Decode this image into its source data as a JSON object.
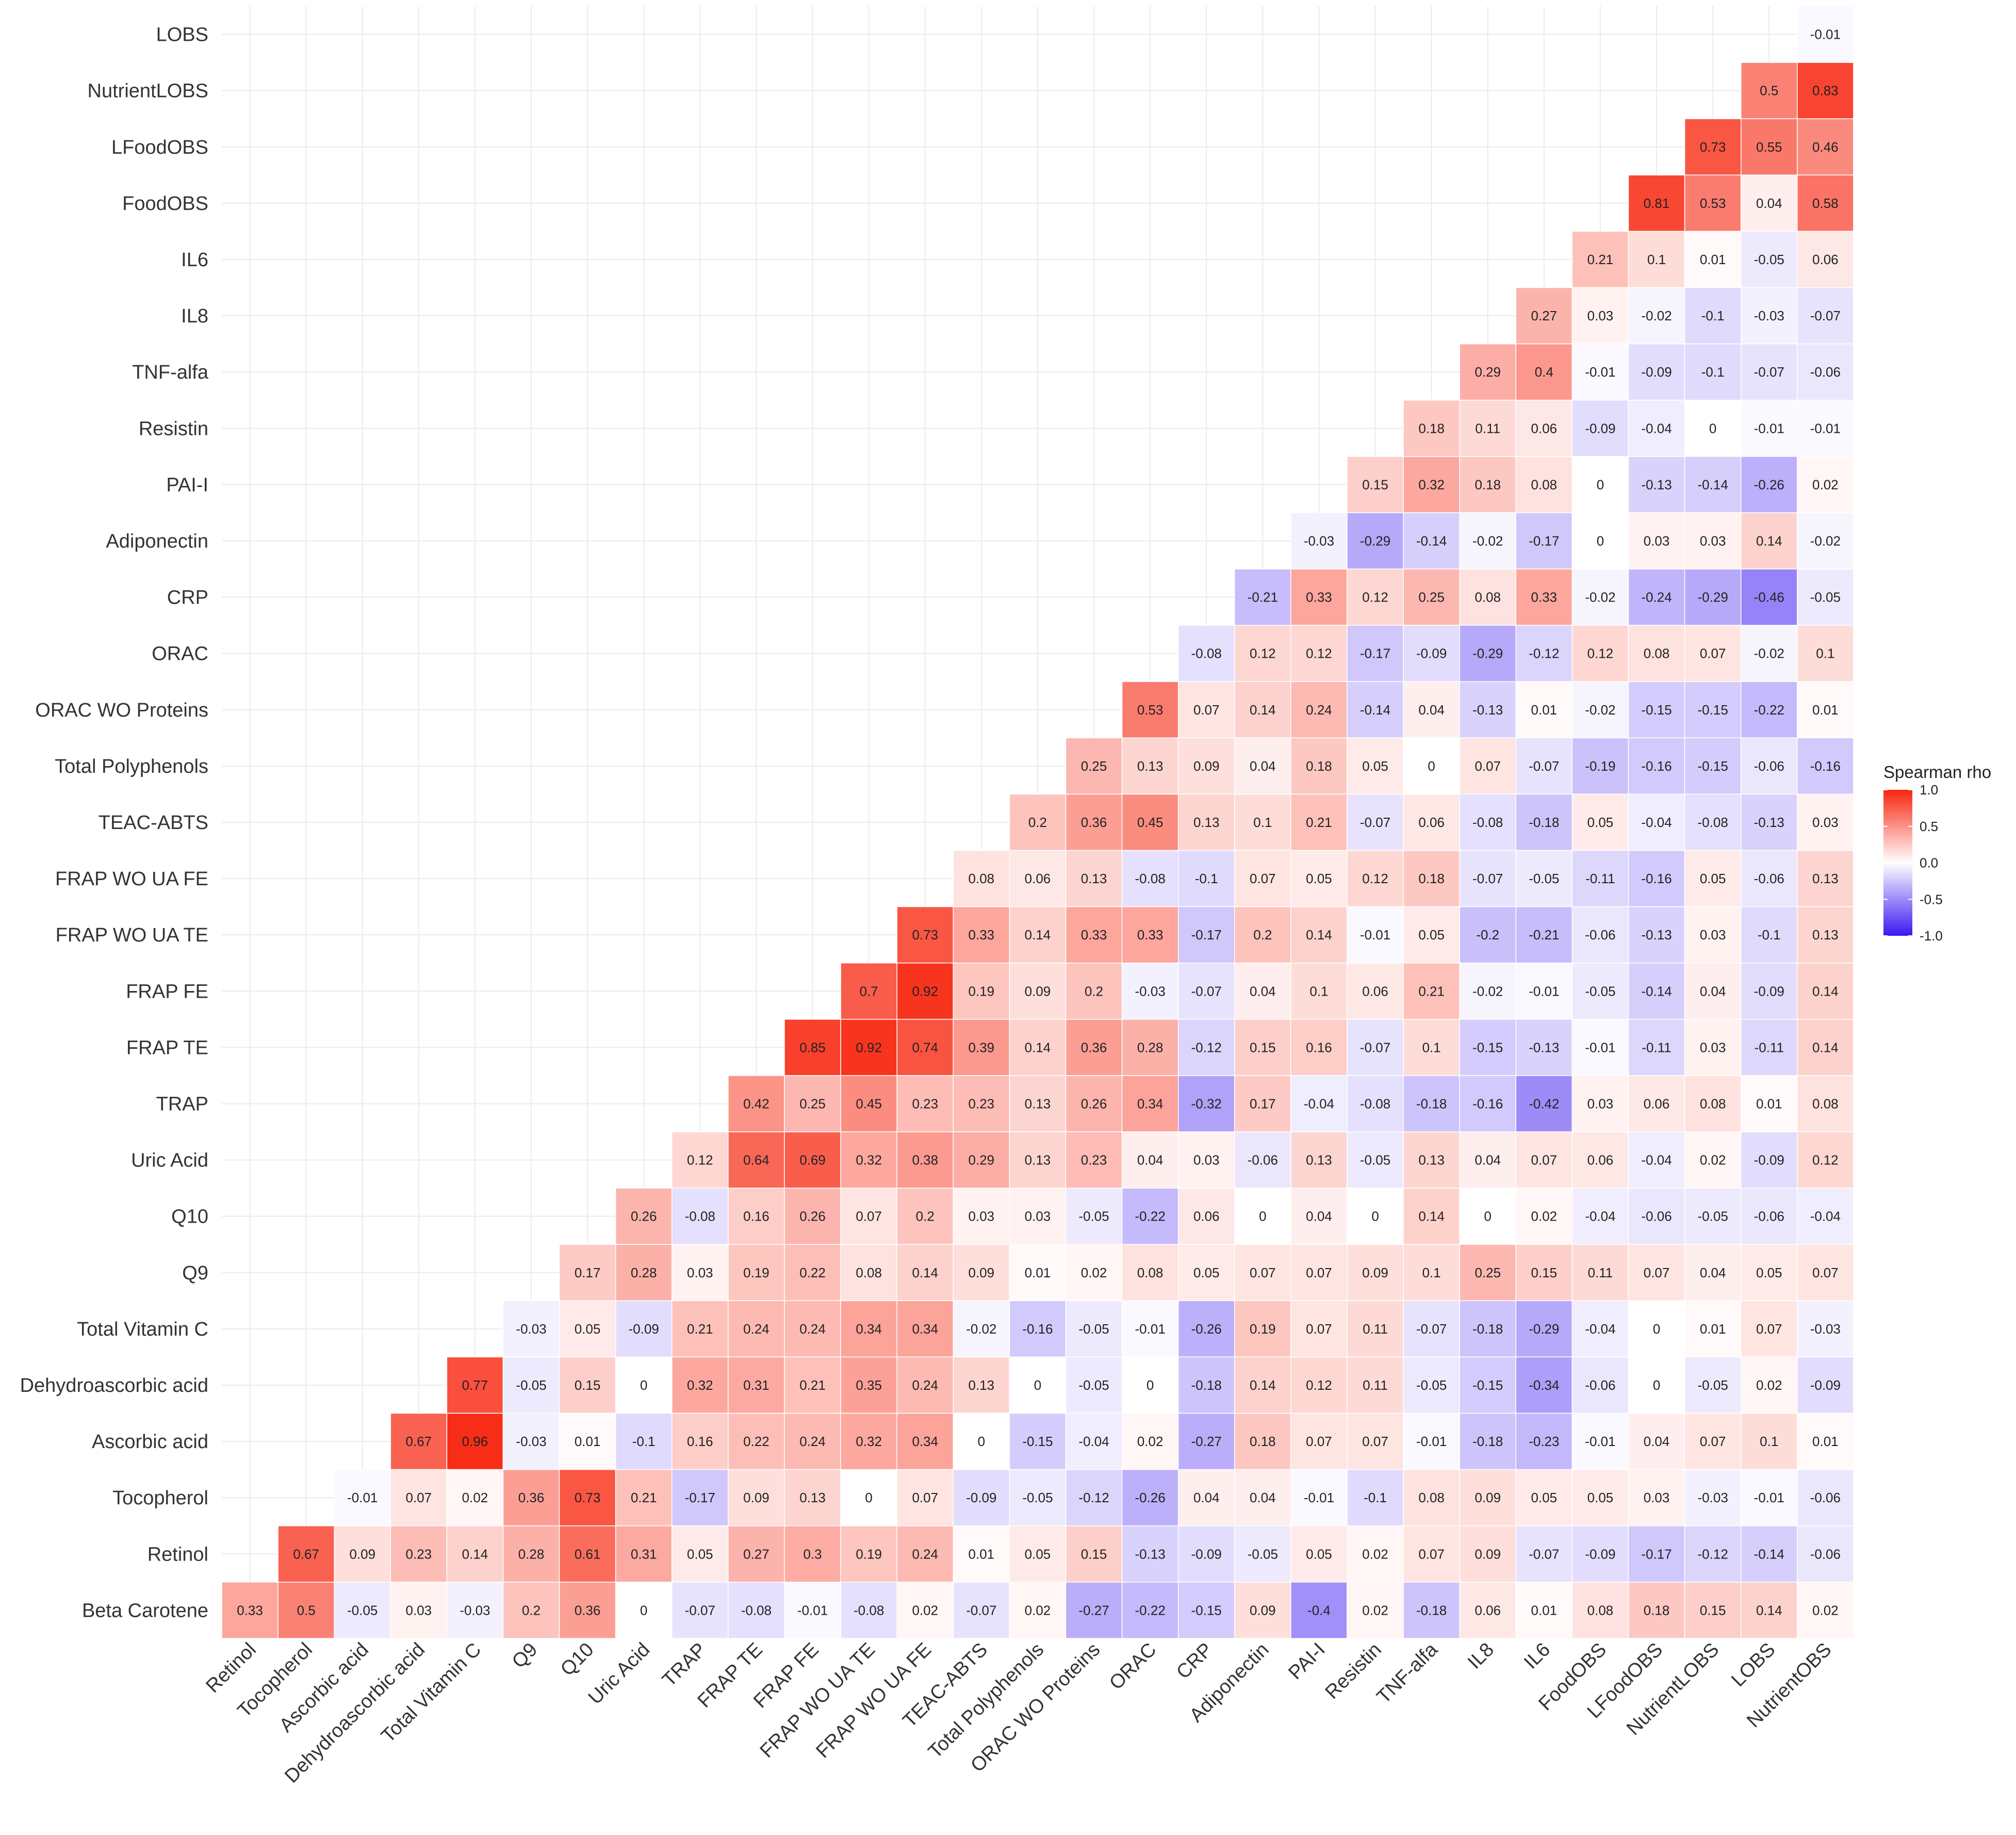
{
  "chart_data": {
    "type": "heatmap",
    "title": "",
    "legend": {
      "title": "Spearman rho",
      "ticks": [
        1.0,
        0.5,
        0.0,
        -0.5,
        -1.0
      ],
      "tick_labels": [
        "1.0",
        "0.5",
        "0.0",
        "-0.5",
        "-1.0"
      ],
      "low_color": "#3b18f0",
      "mid_color": "#ffffff",
      "high_color": "#f7260f"
    },
    "x_labels": [
      "Retinol",
      "Tocopherol",
      "Ascorbic acid",
      "Dehydroascorbic acid",
      "Total Vitamin C",
      "Q9",
      "Q10",
      "Uric Acid",
      "TRAP",
      "FRAP TE",
      "FRAP FE",
      "FRAP WO UA TE",
      "FRAP WO UA FE",
      "TEAC-ABTS",
      "Total Polyphenols",
      "ORAC WO Proteins",
      "ORAC",
      "CRP",
      "Adiponectin",
      "PAI-I",
      "Resistin",
      "TNF-alfa",
      "IL8",
      "IL6",
      "FoodOBS",
      "LFoodOBS",
      "NutrientLOBS",
      "LOBS",
      "NutrientOBS"
    ],
    "y_labels": [
      "LOBS",
      "NutrientLOBS",
      "LFoodOBS",
      "FoodOBS",
      "IL6",
      "IL8",
      "TNF-alfa",
      "Resistin",
      "PAI-I",
      "Adiponectin",
      "CRP",
      "ORAC",
      "ORAC WO Proteins",
      "Total Polyphenols",
      "TEAC-ABTS",
      "FRAP WO UA FE",
      "FRAP WO UA TE",
      "FRAP FE",
      "FRAP TE",
      "TRAP",
      "Uric Acid",
      "Q10",
      "Q9",
      "Total Vitamin C",
      "Dehydroascorbic acid",
      "Ascorbic acid",
      "Tocopherol",
      "Retinol",
      "Beta Carotene"
    ],
    "rows": [
      {
        "label": "LOBS",
        "start": 28,
        "values": [
          "-0.01"
        ]
      },
      {
        "label": "NutrientLOBS",
        "start": 27,
        "values": [
          "0.5",
          "0.83"
        ]
      },
      {
        "label": "LFoodOBS",
        "start": 26,
        "values": [
          "0.73",
          "0.55",
          "0.46"
        ]
      },
      {
        "label": "FoodOBS",
        "start": 25,
        "values": [
          "0.81",
          "0.53",
          "0.04",
          "0.58"
        ]
      },
      {
        "label": "IL6",
        "start": 24,
        "values": [
          "0.21",
          "0.1",
          "0.01",
          "-0.05",
          "0.06"
        ]
      },
      {
        "label": "IL8",
        "start": 23,
        "values": [
          "0.27",
          "0.03",
          "-0.02",
          "-0.1",
          "-0.03",
          "-0.07"
        ]
      },
      {
        "label": "TNF-alfa",
        "start": 22,
        "values": [
          "0.29",
          "0.4",
          "-0.01",
          "-0.09",
          "-0.1",
          "-0.07",
          "-0.06"
        ]
      },
      {
        "label": "Resistin",
        "start": 21,
        "values": [
          "0.18",
          "0.11",
          "0.06",
          "-0.09",
          "-0.04",
          "0",
          "-0.01",
          "-0.01"
        ]
      },
      {
        "label": "PAI-I",
        "start": 20,
        "values": [
          "0.15",
          "0.32",
          "0.18",
          "0.08",
          "0",
          "-0.13",
          "-0.14",
          "-0.26",
          "0.02"
        ]
      },
      {
        "label": "Adiponectin",
        "start": 19,
        "values": [
          "-0.03",
          "-0.29",
          "-0.14",
          "-0.02",
          "-0.17",
          "0",
          "0.03",
          "0.03",
          "0.14",
          "-0.02"
        ]
      },
      {
        "label": "CRP",
        "start": 18,
        "values": [
          "-0.21",
          "0.33",
          "0.12",
          "0.25",
          "0.08",
          "0.33",
          "-0.02",
          "-0.24",
          "-0.29",
          "-0.46",
          "-0.05"
        ]
      },
      {
        "label": "ORAC",
        "start": 17,
        "values": [
          "-0.08",
          "0.12",
          "0.12",
          "-0.17",
          "-0.09",
          "-0.29",
          "-0.12",
          "0.12",
          "0.08",
          "0.07",
          "-0.02",
          "0.1"
        ]
      },
      {
        "label": "ORAC WO Proteins",
        "start": 16,
        "values": [
          "0.53",
          "0.07",
          "0.14",
          "0.24",
          "-0.14",
          "0.04",
          "-0.13",
          "0.01",
          "-0.02",
          "-0.15",
          "-0.15",
          "-0.22",
          "0.01"
        ]
      },
      {
        "label": "Total Polyphenols",
        "start": 15,
        "values": [
          "0.25",
          "0.13",
          "0.09",
          "0.04",
          "0.18",
          "0.05",
          "0",
          "0.07",
          "-0.07",
          "-0.19",
          "-0.16",
          "-0.15",
          "-0.06",
          "-0.16"
        ]
      },
      {
        "label": "TEAC-ABTS",
        "start": 14,
        "values": [
          "0.2",
          "0.36",
          "0.45",
          "0.13",
          "0.1",
          "0.21",
          "-0.07",
          "0.06",
          "-0.08",
          "-0.18",
          "0.05",
          "-0.04",
          "-0.08",
          "-0.13",
          "0.03"
        ]
      },
      {
        "label": "FRAP WO UA FE",
        "start": 13,
        "values": [
          "0.08",
          "0.06",
          "0.13",
          "-0.08",
          "-0.1",
          "0.07",
          "0.05",
          "0.12",
          "0.18",
          "-0.07",
          "-0.05",
          "-0.11",
          "-0.16",
          "0.05",
          "-0.06",
          "0.13"
        ]
      },
      {
        "label": "FRAP WO UA TE",
        "start": 12,
        "values": [
          "0.73",
          "0.33",
          "0.14",
          "0.33",
          "0.33",
          "-0.17",
          "0.2",
          "0.14",
          "-0.01",
          "0.05",
          "-0.2",
          "-0.21",
          "-0.06",
          "-0.13",
          "0.03",
          "-0.1",
          "0.13"
        ]
      },
      {
        "label": "FRAP FE",
        "start": 11,
        "values": [
          "0.7",
          "0.92",
          "0.19",
          "0.09",
          "0.2",
          "-0.03",
          "-0.07",
          "0.04",
          "0.1",
          "0.06",
          "0.21",
          "-0.02",
          "-0.01",
          "-0.05",
          "-0.14",
          "0.04",
          "-0.09",
          "0.14"
        ]
      },
      {
        "label": "FRAP TE",
        "start": 10,
        "values": [
          "0.85",
          "0.92",
          "0.74",
          "0.39",
          "0.14",
          "0.36",
          "0.28",
          "-0.12",
          "0.15",
          "0.16",
          "-0.07",
          "0.1",
          "-0.15",
          "-0.13",
          "-0.01",
          "-0.11",
          "0.03",
          "-0.11",
          "0.14"
        ]
      },
      {
        "label": "TRAP",
        "start": 9,
        "values": [
          "0.42",
          "0.25",
          "0.45",
          "0.23",
          "0.23",
          "0.13",
          "0.26",
          "0.34",
          "-0.32",
          "0.17",
          "-0.04",
          "-0.08",
          "-0.18",
          "-0.16",
          "-0.42",
          "0.03",
          "0.06",
          "0.08",
          "0.01",
          "0.08"
        ]
      },
      {
        "label": "Uric Acid",
        "start": 8,
        "values": [
          "0.12",
          "0.64",
          "0.69",
          "0.32",
          "0.38",
          "0.29",
          "0.13",
          "0.23",
          "0.04",
          "0.03",
          "-0.06",
          "0.13",
          "-0.05",
          "0.13",
          "0.04",
          "0.07",
          "0.06",
          "-0.04",
          "0.02",
          "-0.09",
          "0.12"
        ]
      },
      {
        "label": "Q10",
        "start": 7,
        "values": [
          "0.26",
          "-0.08",
          "0.16",
          "0.26",
          "0.07",
          "0.2",
          "0.03",
          "0.03",
          "-0.05",
          "-0.22",
          "0.06",
          "0",
          "0.04",
          "0",
          "0.14",
          "0",
          "0.02",
          "-0.04",
          "-0.06",
          "-0.05",
          "-0.06",
          "-0.04"
        ]
      },
      {
        "label": "Q9",
        "start": 6,
        "values": [
          "0.17",
          "0.28",
          "0.03",
          "0.19",
          "0.22",
          "0.08",
          "0.14",
          "0.09",
          "0.01",
          "0.02",
          "0.08",
          "0.05",
          "0.07",
          "0.07",
          "0.09",
          "0.1",
          "0.25",
          "0.15",
          "0.11",
          "0.07",
          "0.04",
          "0.05",
          "0.07"
        ]
      },
      {
        "label": "Total Vitamin C",
        "start": 5,
        "values": [
          "-0.03",
          "0.05",
          "-0.09",
          "0.21",
          "0.24",
          "0.24",
          "0.34",
          "0.34",
          "-0.02",
          "-0.16",
          "-0.05",
          "-0.01",
          "-0.26",
          "0.19",
          "0.07",
          "0.11",
          "-0.07",
          "-0.18",
          "-0.29",
          "-0.04",
          "0",
          "0.01",
          "0.07",
          "-0.03"
        ]
      },
      {
        "label": "Dehydroascorbic acid",
        "start": 4,
        "values": [
          "0.77",
          "-0.05",
          "0.15",
          "0",
          "0.32",
          "0.31",
          "0.21",
          "0.35",
          "0.24",
          "0.13",
          "0",
          "-0.05",
          "0",
          "-0.18",
          "0.14",
          "0.12",
          "0.11",
          "-0.05",
          "-0.15",
          "-0.34",
          "-0.06",
          "0",
          "-0.05",
          "0.02",
          "-0.09"
        ]
      },
      {
        "label": "Ascorbic acid",
        "start": 3,
        "values": [
          "0.67",
          "0.96",
          "-0.03",
          "0.01",
          "-0.1",
          "0.16",
          "0.22",
          "0.24",
          "0.32",
          "0.34",
          "0",
          "-0.15",
          "-0.04",
          "0.02",
          "-0.27",
          "0.18",
          "0.07",
          "0.07",
          "-0.01",
          "-0.18",
          "-0.23",
          "-0.01",
          "0.04",
          "0.07",
          "0.1",
          "0.01"
        ]
      },
      {
        "label": "Tocopherol",
        "start": 2,
        "values": [
          "-0.01",
          "0.07",
          "0.02",
          "0.36",
          "0.73",
          "0.21",
          "-0.17",
          "0.09",
          "0.13",
          "0",
          "0.07",
          "-0.09",
          "-0.05",
          "-0.12",
          "-0.26",
          "0.04",
          "0.04",
          "-0.01",
          "-0.1",
          "0.08",
          "0.09",
          "0.05",
          "0.05",
          "0.03",
          "-0.03",
          "-0.01",
          "-0.06"
        ]
      },
      {
        "label": "Retinol",
        "start": 1,
        "values": [
          "0.67",
          "0.09",
          "0.23",
          "0.14",
          "0.28",
          "0.61",
          "0.31",
          "0.05",
          "0.27",
          "0.3",
          "0.19",
          "0.24",
          "0.01",
          "0.05",
          "0.15",
          "-0.13",
          "-0.09",
          "-0.05",
          "0.05",
          "0.02",
          "0.07",
          "0.09",
          "-0.07",
          "-0.09",
          "-0.17",
          "-0.12",
          "-0.14",
          "-0.06"
        ]
      },
      {
        "label": "Beta Carotene",
        "start": 0,
        "values": [
          "0.33",
          "0.5",
          "-0.05",
          "0.03",
          "-0.03",
          "0.2",
          "0.36",
          "0",
          "-0.07",
          "-0.08",
          "-0.01",
          "-0.08",
          "0.02",
          "-0.07",
          "0.02",
          "-0.27",
          "-0.22",
          "-0.15",
          "0.09",
          "-0.4",
          "0.02",
          "-0.18",
          "0.06",
          "0.01",
          "0.08",
          "0.18",
          "0.15",
          "0.14",
          "0.02"
        ]
      }
    ]
  }
}
